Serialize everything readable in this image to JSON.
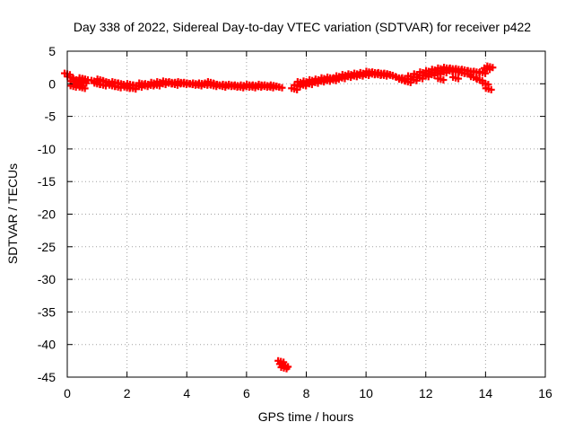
{
  "chart_data": {
    "type": "scatter",
    "title": "Day 338 of 2022, Sidereal Day-to-day VTEC variation (SDTVAR) for receiver p422",
    "xlabel": "GPS time / hours",
    "ylabel": "SDTVAR / TECUs",
    "xlim": [
      0,
      16
    ],
    "ylim": [
      -45,
      5
    ],
    "xticks": [
      "0",
      "2",
      "4",
      "6",
      "8",
      "10",
      "12",
      "14",
      "16"
    ],
    "yticks": [
      "5",
      "0",
      "-5",
      "-10",
      "-15",
      "-20",
      "-25",
      "-30",
      "-35",
      "-40",
      "-45"
    ],
    "xtick_values": [
      0,
      2,
      4,
      6,
      8,
      10,
      12,
      14,
      16
    ],
    "ytick_values": [
      5,
      0,
      -5,
      -10,
      -15,
      -20,
      -25,
      -30,
      -35,
      -40,
      -45
    ],
    "grid": true,
    "marker": "+",
    "series": [
      {
        "color": "#ff0000",
        "points": [
          [
            0.0,
            1.5
          ],
          [
            0.1,
            1.0
          ],
          [
            0.2,
            0.3
          ],
          [
            0.3,
            0.6
          ],
          [
            0.4,
            0.4
          ],
          [
            0.5,
            0.8
          ],
          [
            0.6,
            0.7
          ],
          [
            0.2,
            -0.4
          ],
          [
            0.35,
            -0.2
          ],
          [
            0.5,
            -0.6
          ],
          [
            0.55,
            0.2
          ],
          [
            0.9,
            0.4
          ],
          [
            1.0,
            0.0
          ],
          [
            1.1,
            0.6
          ],
          [
            1.2,
            -0.2
          ],
          [
            1.3,
            0.3
          ],
          [
            1.4,
            0.1
          ],
          [
            1.5,
            -0.3
          ],
          [
            1.6,
            0.2
          ],
          [
            1.7,
            -0.5
          ],
          [
            1.8,
            0.0
          ],
          [
            1.9,
            -0.2
          ],
          [
            2.0,
            -0.6
          ],
          [
            2.1,
            -0.1
          ],
          [
            2.2,
            -0.7
          ],
          [
            2.3,
            -0.3
          ],
          [
            2.4,
            -0.4
          ],
          [
            2.5,
            0.0
          ],
          [
            2.6,
            -0.3
          ],
          [
            2.7,
            -0.1
          ],
          [
            2.8,
            -0.2
          ],
          [
            2.9,
            0.1
          ],
          [
            3.0,
            -0.2
          ],
          [
            3.1,
            0.2
          ],
          [
            3.2,
            0.0
          ],
          [
            3.3,
            0.3
          ],
          [
            3.4,
            0.1
          ],
          [
            3.5,
            0.2
          ],
          [
            3.6,
            -0.1
          ],
          [
            3.7,
            0.1
          ],
          [
            3.8,
            0.2
          ],
          [
            3.9,
            0.0
          ],
          [
            4.0,
            0.1
          ],
          [
            4.1,
            0.0
          ],
          [
            4.2,
            -0.1
          ],
          [
            4.3,
            0.0
          ],
          [
            4.4,
            -0.2
          ],
          [
            4.5,
            0.0
          ],
          [
            4.6,
            -0.1
          ],
          [
            4.7,
            0.0
          ],
          [
            4.8,
            0.2
          ],
          [
            4.9,
            -0.3
          ],
          [
            5.0,
            -0.1
          ],
          [
            5.1,
            -0.2
          ],
          [
            5.2,
            -0.4
          ],
          [
            5.3,
            -0.2
          ],
          [
            5.4,
            -0.3
          ],
          [
            5.5,
            -0.2
          ],
          [
            5.6,
            -0.4
          ],
          [
            5.7,
            -0.3
          ],
          [
            5.8,
            -0.5
          ],
          [
            5.9,
            -0.3
          ],
          [
            6.0,
            -0.4
          ],
          [
            6.1,
            -0.2
          ],
          [
            6.2,
            -0.5
          ],
          [
            6.3,
            -0.3
          ],
          [
            6.4,
            -0.4
          ],
          [
            6.5,
            -0.2
          ],
          [
            6.6,
            -0.4
          ],
          [
            6.7,
            -0.3
          ],
          [
            6.8,
            -0.5
          ],
          [
            6.9,
            -0.3
          ],
          [
            7.0,
            -0.4
          ],
          [
            7.1,
            -0.5
          ],
          [
            7.15,
            -42.6
          ],
          [
            7.2,
            -43.1
          ],
          [
            7.25,
            -43.6
          ],
          [
            7.3,
            -43.3
          ],
          [
            7.6,
            -0.8
          ],
          [
            7.7,
            -0.3
          ],
          [
            7.8,
            0.2
          ],
          [
            7.9,
            -0.2
          ],
          [
            8.0,
            0.3
          ],
          [
            8.1,
            0.0
          ],
          [
            8.2,
            0.5
          ],
          [
            8.3,
            0.2
          ],
          [
            8.4,
            0.6
          ],
          [
            8.5,
            0.4
          ],
          [
            8.6,
            0.8
          ],
          [
            8.7,
            0.5
          ],
          [
            8.8,
            0.9
          ],
          [
            8.9,
            0.6
          ],
          [
            9.0,
            0.8
          ],
          [
            9.1,
            1.1
          ],
          [
            9.2,
            0.9
          ],
          [
            9.3,
            1.3
          ],
          [
            9.4,
            1.1
          ],
          [
            9.5,
            1.4
          ],
          [
            9.6,
            1.2
          ],
          [
            9.7,
            1.5
          ],
          [
            9.8,
            1.3
          ],
          [
            9.9,
            1.6
          ],
          [
            10.0,
            1.4
          ],
          [
            10.1,
            1.8
          ],
          [
            10.2,
            1.5
          ],
          [
            10.3,
            1.7
          ],
          [
            10.4,
            1.4
          ],
          [
            10.5,
            1.6
          ],
          [
            10.6,
            1.3
          ],
          [
            10.7,
            1.5
          ],
          [
            10.8,
            1.4
          ],
          [
            10.9,
            1.2
          ],
          [
            11.1,
            0.9
          ],
          [
            11.2,
            0.6
          ],
          [
            11.3,
            0.8
          ],
          [
            11.4,
            0.3
          ],
          [
            11.5,
            1.1
          ],
          [
            11.6,
            0.6
          ],
          [
            11.7,
            1.4
          ],
          [
            11.8,
            0.9
          ],
          [
            11.9,
            1.7
          ],
          [
            12.0,
            1.2
          ],
          [
            12.1,
            1.9
          ],
          [
            12.2,
            1.4
          ],
          [
            12.3,
            2.1
          ],
          [
            12.4,
            1.6
          ],
          [
            12.5,
            2.3
          ],
          [
            12.6,
            1.8
          ],
          [
            12.7,
            2.4
          ],
          [
            12.8,
            2.0
          ],
          [
            12.9,
            2.3
          ],
          [
            13.0,
            1.9
          ],
          [
            13.1,
            2.2
          ],
          [
            13.2,
            1.7
          ],
          [
            13.3,
            2.1
          ],
          [
            13.4,
            1.5
          ],
          [
            13.5,
            1.9
          ],
          [
            13.6,
            1.0
          ],
          [
            13.7,
            1.8
          ],
          [
            13.8,
            0.6
          ],
          [
            13.9,
            1.7
          ],
          [
            14.0,
            0.0
          ],
          [
            14.05,
            2.3
          ],
          [
            14.1,
            -0.8
          ],
          [
            14.15,
            2.6
          ],
          [
            12.5,
            0.7
          ],
          [
            13.0,
            0.9
          ]
        ]
      }
    ]
  }
}
